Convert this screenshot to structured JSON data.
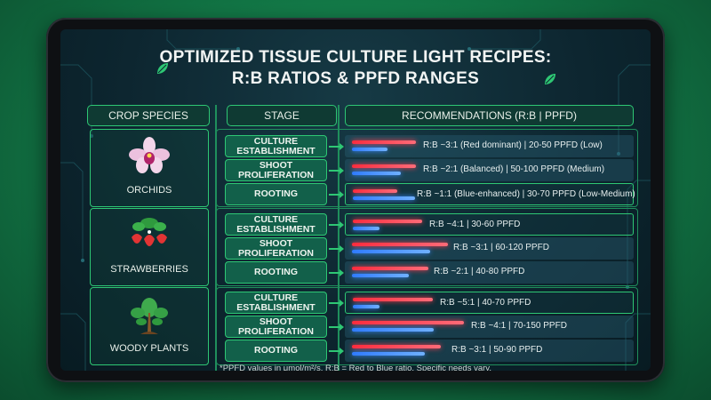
{
  "title_line1": "OPTIMIZED TISSUE CULTURE LIGHT RECIPES:",
  "title_line2": "R:B RATIOS & PPFD RANGES",
  "headers": {
    "species": "CROP SPECIES",
    "stage": "STAGE",
    "recommendations": "RECOMMENDATIONS (R:B | PPFD)"
  },
  "species": [
    {
      "label": "ORCHIDS",
      "icon": "orchid-icon"
    },
    {
      "label": "STRAWBERRIES",
      "icon": "strawberry-icon"
    },
    {
      "label": "WOODY PLANTS",
      "icon": "tree-icon"
    }
  ],
  "rows": [
    {
      "stage": "CULTURE ESTABLISHMENT",
      "rec": "R:B ~3:1 (Red dominant) | 20-50 PPFD (Low)",
      "ratio": 3
    },
    {
      "stage": "SHOOT PROLIFERATION",
      "rec": "R:B ~2:1 (Balanced) | 50-100 PPFD (Medium)",
      "ratio": 2
    },
    {
      "stage": "ROOTING",
      "rec": "R:B ~1:1 (Blue-enhanced) | 30-70 PPFD (Low-Medium)",
      "ratio": 1
    },
    {
      "stage": "CULTURE ESTABLISHMENT",
      "rec": "R:B ~4:1 | 30-60 PPFD",
      "ratio": 4
    },
    {
      "stage": "SHOOT PROLIFERATION",
      "rec": "R:B ~3:1 | 60-120 PPFD",
      "ratio": 3
    },
    {
      "stage": "ROOTING",
      "rec": "R:B ~2:1 | 40-80 PPFD",
      "ratio": 2
    },
    {
      "stage": "CULTURE ESTABLISHMENT",
      "rec": "R:B ~5:1 | 40-70 PPFD",
      "ratio": 5
    },
    {
      "stage": "SHOOT PROLIFERATION",
      "rec": "R:B ~4:1 | 70-150 PPFD",
      "ratio": 4
    },
    {
      "stage": "ROOTING",
      "rec": "R:B ~3:1 | 50-90 PPFD",
      "ratio": 3
    }
  ],
  "footnote": "*PPFD values in μmol/m²/s. R:B = Red to Blue ratio. Specific needs vary.",
  "colors": {
    "accent": "#2ec774",
    "red": "#ff3a4a",
    "blue": "#3a8aff"
  }
}
